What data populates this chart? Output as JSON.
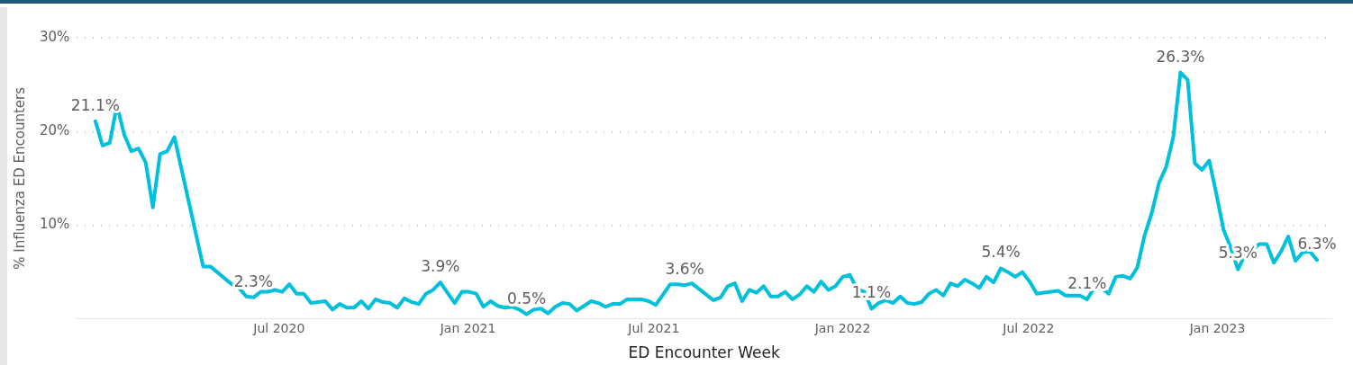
{
  "chart_data": {
    "type": "line",
    "xlabel": "ED Encounter Week",
    "ylabel": "% Influenza ED Encounters",
    "x": [
      "2020-01-04",
      "2020-01-11",
      "2020-01-18",
      "2020-01-25",
      "2020-02-01",
      "2020-02-08",
      "2020-02-15",
      "2020-02-22",
      "2020-02-29",
      "2020-03-07",
      "2020-03-14",
      "2020-03-21",
      "2020-04-18",
      "2020-04-25",
      "2020-05-16",
      "2020-05-23",
      "2020-05-30",
      "2020-06-06",
      "2020-06-13",
      "2020-06-20",
      "2020-06-27",
      "2020-07-04",
      "2020-07-11",
      "2020-07-18",
      "2020-07-25",
      "2020-08-01",
      "2020-08-15",
      "2020-08-22",
      "2020-08-29",
      "2020-09-05",
      "2020-09-12",
      "2020-09-19",
      "2020-09-26",
      "2020-10-03",
      "2020-10-10",
      "2020-10-17",
      "2020-10-24",
      "2020-10-31",
      "2020-11-07",
      "2020-11-14",
      "2020-11-21",
      "2020-11-28",
      "2020-12-05",
      "2020-12-12",
      "2020-12-19",
      "2020-12-26",
      "2021-01-02",
      "2021-01-09",
      "2021-01-16",
      "2021-01-23",
      "2021-01-30",
      "2021-02-06",
      "2021-02-13",
      "2021-02-20",
      "2021-02-27",
      "2021-03-06",
      "2021-03-13",
      "2021-03-20",
      "2021-03-27",
      "2021-04-03",
      "2021-04-10",
      "2021-04-17",
      "2021-04-24",
      "2021-05-01",
      "2021-05-08",
      "2021-05-15",
      "2021-05-22",
      "2021-05-29",
      "2021-06-05",
      "2021-06-12",
      "2021-06-19",
      "2021-06-26",
      "2021-07-03",
      "2021-07-10",
      "2021-07-17",
      "2021-07-24",
      "2021-07-31",
      "2021-08-07",
      "2021-08-14",
      "2021-08-28",
      "2021-09-04",
      "2021-09-11",
      "2021-09-18",
      "2021-09-25",
      "2021-10-02",
      "2021-10-09",
      "2021-10-16",
      "2021-10-23",
      "2021-10-30",
      "2021-11-06",
      "2021-11-13",
      "2021-11-20",
      "2021-11-27",
      "2021-12-04",
      "2021-12-11",
      "2021-12-18",
      "2021-12-25",
      "2022-01-01",
      "2022-01-08",
      "2022-01-15",
      "2022-01-22",
      "2022-01-29",
      "2022-02-05",
      "2022-02-12",
      "2022-02-19",
      "2022-02-26",
      "2022-03-05",
      "2022-03-12",
      "2022-03-19",
      "2022-03-26",
      "2022-04-02",
      "2022-04-09",
      "2022-04-16",
      "2022-04-23",
      "2022-04-30",
      "2022-05-07",
      "2022-05-14",
      "2022-05-21",
      "2022-05-28",
      "2022-06-04",
      "2022-06-11",
      "2022-06-18",
      "2022-06-25",
      "2022-07-02",
      "2022-07-09",
      "2022-07-16",
      "2022-07-30",
      "2022-08-06",
      "2022-08-20",
      "2022-08-27",
      "2022-09-03",
      "2022-09-10",
      "2022-09-17",
      "2022-09-24",
      "2022-10-01",
      "2022-10-08",
      "2022-10-15",
      "2022-10-22",
      "2022-10-29",
      "2022-11-05",
      "2022-11-12",
      "2022-11-19",
      "2022-11-26",
      "2022-12-03",
      "2022-12-10",
      "2022-12-17",
      "2022-12-24",
      "2022-12-31",
      "2023-01-07",
      "2023-01-14",
      "2023-01-21",
      "2023-01-28",
      "2023-02-04",
      "2023-02-11",
      "2023-02-18",
      "2023-02-25",
      "2023-03-04",
      "2023-03-11",
      "2023-03-18",
      "2023-03-25",
      "2023-04-01",
      "2023-04-08"
    ],
    "series": [
      {
        "color": "#00c0dc",
        "values": [
          21.1,
          18.5,
          18.8,
          22.8,
          19.7,
          17.9,
          18.2,
          16.7,
          11.9,
          17.6,
          17.9,
          19.4,
          5.6,
          5.6,
          3.7,
          3.3,
          2.4,
          2.3,
          2.9,
          2.9,
          3.1,
          2.9,
          3.7,
          2.7,
          2.7,
          1.7,
          1.9,
          1.0,
          1.6,
          1.2,
          1.2,
          1.9,
          1.1,
          2.1,
          1.8,
          1.7,
          1.2,
          2.2,
          1.8,
          1.6,
          2.7,
          3.1,
          3.9,
          2.8,
          1.7,
          2.9,
          2.9,
          2.7,
          1.3,
          1.9,
          1.4,
          1.2,
          1.3,
          1.0,
          0.5,
          1.0,
          1.1,
          0.6,
          1.3,
          1.7,
          1.6,
          0.9,
          1.4,
          1.9,
          1.7,
          1.3,
          1.6,
          1.6,
          2.1,
          2.1,
          2.1,
          1.9,
          1.5,
          2.6,
          3.7,
          3.7,
          3.6,
          3.8,
          3.2,
          2.0,
          2.3,
          3.5,
          3.8,
          1.9,
          3.1,
          2.8,
          3.5,
          2.4,
          2.4,
          2.9,
          2.1,
          2.6,
          3.5,
          2.9,
          4.0,
          3.1,
          3.5,
          4.5,
          4.7,
          3.2,
          2.9,
          1.1,
          1.7,
          2.0,
          1.7,
          2.4,
          1.7,
          1.6,
          1.8,
          2.7,
          3.1,
          2.5,
          3.8,
          3.5,
          4.2,
          3.8,
          3.3,
          4.5,
          3.9,
          5.4,
          5.0,
          4.5,
          5.0,
          4.0,
          2.7,
          2.8,
          3.0,
          2.5,
          2.5,
          2.1,
          3.3,
          3.3,
          2.7,
          4.5,
          4.6,
          4.3,
          5.5,
          8.9,
          11.3,
          14.5,
          16.2,
          19.4,
          26.3,
          25.5,
          16.6,
          15.9,
          16.9,
          13.3,
          9.5,
          7.6,
          5.3,
          6.9,
          7.4,
          8.0,
          8.0,
          6.0,
          7.2,
          8.8,
          6.2,
          7.1,
          7.2,
          6.3
        ],
        "value_labels": [
          "21.1%",
          null,
          null,
          null,
          null,
          null,
          null,
          null,
          null,
          null,
          null,
          null,
          null,
          null,
          null,
          null,
          null,
          "2.3%",
          null,
          null,
          null,
          null,
          null,
          null,
          null,
          null,
          null,
          null,
          null,
          null,
          null,
          null,
          null,
          null,
          null,
          null,
          null,
          null,
          null,
          null,
          null,
          null,
          "3.9%",
          null,
          null,
          null,
          null,
          null,
          null,
          null,
          null,
          null,
          null,
          null,
          "0.5%",
          null,
          null,
          null,
          null,
          null,
          null,
          null,
          null,
          null,
          null,
          null,
          null,
          null,
          null,
          null,
          null,
          null,
          null,
          null,
          null,
          null,
          "3.6%",
          null,
          null,
          null,
          null,
          null,
          null,
          null,
          null,
          null,
          null,
          null,
          null,
          null,
          null,
          null,
          null,
          null,
          null,
          null,
          null,
          null,
          null,
          null,
          null,
          "1.1%",
          null,
          null,
          null,
          null,
          null,
          null,
          null,
          null,
          null,
          null,
          null,
          null,
          null,
          null,
          null,
          null,
          null,
          "5.4%",
          null,
          null,
          null,
          null,
          null,
          null,
          null,
          null,
          null,
          "2.1%",
          null,
          null,
          null,
          null,
          null,
          null,
          null,
          null,
          null,
          null,
          null,
          null,
          "26.3%",
          null,
          null,
          null,
          null,
          null,
          null,
          null,
          "5.3%",
          null,
          null,
          null,
          null,
          null,
          null,
          null,
          null,
          null,
          null,
          "6.3%"
        ]
      }
    ],
    "xlim": [
      "2019-12-17",
      "2023-04-22"
    ],
    "xticks": [
      {
        "value": "2020-07-01",
        "label": "Jul 2020"
      },
      {
        "value": "2021-01-01",
        "label": "Jan 2021"
      },
      {
        "value": "2021-07-01",
        "label": "Jul 2021"
      },
      {
        "value": "2022-01-01",
        "label": "Jan 2022"
      },
      {
        "value": "2022-07-01",
        "label": "Jul 2022"
      },
      {
        "value": "2023-01-01",
        "label": "Jan 2023"
      }
    ],
    "yticks": [
      {
        "value": 10,
        "label": "10%"
      },
      {
        "value": 20,
        "label": "20%"
      },
      {
        "value": 30,
        "label": "30%"
      }
    ],
    "ylim": [
      0,
      30
    ],
    "grid": "y"
  }
}
